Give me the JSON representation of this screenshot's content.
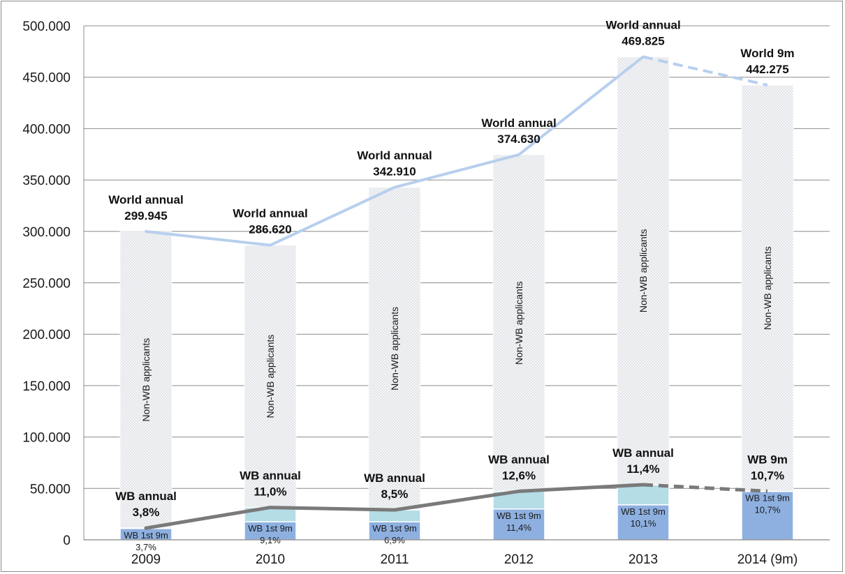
{
  "colors": {
    "world_line": "#b8cfee",
    "wb_line": "#7a7a7a",
    "wb_first_bar": "#8eb0e0",
    "wb_rest_bar": "#b4dde6",
    "non_wb_bar": "#f0f2f5",
    "grid": "#8c8c8c"
  },
  "chart_data": {
    "type": "bar",
    "title": "",
    "xlabel": "",
    "ylabel": "",
    "ylim": [
      0,
      500000
    ],
    "yticks": [
      0,
      50000,
      100000,
      150000,
      200000,
      250000,
      300000,
      350000,
      400000,
      450000,
      500000
    ],
    "ytick_labels": [
      "0",
      "50.000",
      "100.000",
      "150.000",
      "200.000",
      "250.000",
      "300.000",
      "350.000",
      "400.000",
      "450.000",
      "500.000"
    ],
    "categories": [
      "2009",
      "2010",
      "2011",
      "2012",
      "2013",
      "2014 (9m)"
    ],
    "series": [
      {
        "name": "WB 1st 9m",
        "values": [
          11000,
          17500,
          17500,
          30000,
          34000,
          47000
        ]
      },
      {
        "name": "WB annual",
        "values": [
          11400,
          31500,
          29100,
          47200,
          53600,
          47300
        ]
      },
      {
        "name": "World annual",
        "values": [
          299945,
          286620,
          342910,
          374630,
          469825,
          442275
        ]
      }
    ],
    "world_labels": [
      {
        "line1": "World annual",
        "line2": "299.945"
      },
      {
        "line1": "World annual",
        "line2": "286.620"
      },
      {
        "line1": "World annual",
        "line2": "342.910"
      },
      {
        "line1": "World annual",
        "line2": "374.630"
      },
      {
        "line1": "World annual",
        "line2": "469.825"
      },
      {
        "line1": "World 9m",
        "line2": "442.275"
      }
    ],
    "wb_labels": [
      {
        "line1": "WB annual",
        "line2": "3,8%"
      },
      {
        "line1": "WB annual",
        "line2": "11,0%"
      },
      {
        "line1": "WB annual",
        "line2": "8,5%"
      },
      {
        "line1": "WB annual",
        "line2": "12,6%"
      },
      {
        "line1": "WB annual",
        "line2": "11,4%"
      },
      {
        "line1": "WB 9m",
        "line2": "10,7%"
      }
    ],
    "first9m_labels": [
      {
        "line1": "WB 1st 9m",
        "line2": "3,7%"
      },
      {
        "line1": "WB 1st 9m",
        "line2": "9,1%"
      },
      {
        "line1": "WB 1st 9m",
        "line2": "6,9%"
      },
      {
        "line1": "WB 1st 9m",
        "line2": "11,4%"
      },
      {
        "line1": "WB 1st 9m",
        "line2": "10,1%"
      },
      {
        "line1": "WB 1st 9m",
        "line2": "10,7%"
      }
    ],
    "non_wb_label": "Non-WB applicants",
    "dashed_last_segment": true,
    "grid": true,
    "legend": "none"
  }
}
